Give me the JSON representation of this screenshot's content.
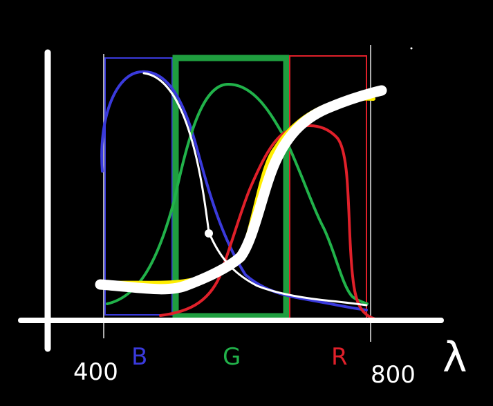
{
  "labels": {
    "x_start": "400",
    "x_end": "800",
    "blue": "B",
    "green": "G",
    "red": "R",
    "lambda": "λ"
  },
  "colors": {
    "background": "#000000",
    "axes": "#ffffff",
    "blue": "#3a3adc",
    "green": "#21b24a",
    "red": "#e0202a",
    "highlight": "#ffee00"
  }
}
